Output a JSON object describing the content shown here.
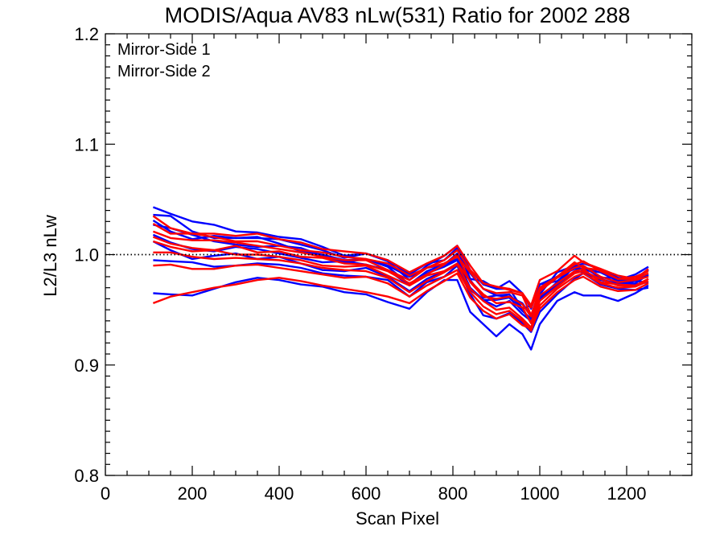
{
  "chart_data": {
    "type": "line",
    "title": "MODIS/Aqua AV83 nLw(531) Ratio for 2002 288",
    "xlabel": "Scan Pixel",
    "ylabel": "L2/L3 nLw",
    "xlim": [
      0,
      1350
    ],
    "ylim": [
      0.8,
      1.2
    ],
    "x_ticks": [
      0,
      200,
      400,
      600,
      800,
      1000,
      1200
    ],
    "y_ticks": [
      0.8,
      0.9,
      1.0,
      1.1,
      1.2
    ],
    "x_tick_labels": [
      "0",
      "200",
      "400",
      "600",
      "800",
      "1000",
      "1200"
    ],
    "y_tick_labels": [
      "0.8",
      "0.9",
      "1.0",
      "1.1",
      "1.2"
    ],
    "reference_line": {
      "y": 1.0,
      "style": "dotted"
    },
    "legend_position": "top-left",
    "legend": [
      {
        "label": "Mirror-Side 1",
        "color": "#0000ff"
      },
      {
        "label": "Mirror-Side 2",
        "color": "#ff0000"
      }
    ],
    "x": [
      110,
      150,
      200,
      250,
      300,
      350,
      400,
      450,
      500,
      550,
      600,
      650,
      700,
      740,
      780,
      810,
      840,
      870,
      900,
      930,
      960,
      980,
      1000,
      1040,
      1080,
      1100,
      1140,
      1180,
      1220,
      1250
    ],
    "series": [
      {
        "group": "Mirror-Side 1",
        "color": "#0000ff",
        "values": [
          1.043,
          1.037,
          1.03,
          1.027,
          1.021,
          1.02,
          1.016,
          1.014,
          1.007,
          0.999,
          1.001,
          0.995,
          0.982,
          0.992,
          0.995,
          1.006,
          0.978,
          0.976,
          0.969,
          0.976,
          0.965,
          0.951,
          0.973,
          0.976,
          0.989,
          0.992,
          0.987,
          0.979,
          0.978,
          0.986
        ]
      },
      {
        "group": "Mirror-Side 1",
        "color": "#0000ff",
        "values": [
          1.036,
          1.035,
          1.021,
          1.015,
          1.015,
          1.015,
          1.014,
          1.009,
          1.004,
          0.997,
          1.001,
          0.994,
          0.977,
          0.99,
          0.999,
          1.008,
          0.986,
          0.973,
          0.969,
          0.969,
          0.951,
          0.954,
          0.973,
          0.98,
          0.987,
          0.987,
          0.986,
          0.977,
          0.982,
          0.989
        ]
      },
      {
        "group": "Mirror-Side 1",
        "color": "#0000ff",
        "values": [
          1.031,
          1.021,
          1.014,
          1.017,
          1.015,
          1.016,
          1.01,
          1.003,
          1.0,
          0.995,
          0.996,
          0.99,
          0.98,
          0.988,
          0.991,
          1.001,
          0.983,
          0.969,
          0.963,
          0.962,
          0.956,
          0.944,
          0.964,
          0.984,
          0.99,
          0.986,
          0.984,
          0.976,
          0.977,
          0.981
        ]
      },
      {
        "group": "Mirror-Side 1",
        "color": "#0000ff",
        "values": [
          1.027,
          1.024,
          1.018,
          1.012,
          1.009,
          1.007,
          1.008,
          1.006,
          0.999,
          0.993,
          0.996,
          0.989,
          0.973,
          0.985,
          0.991,
          0.996,
          0.977,
          0.961,
          0.963,
          0.964,
          0.951,
          0.938,
          0.961,
          0.975,
          0.991,
          0.985,
          0.978,
          0.973,
          0.974,
          0.982
        ]
      },
      {
        "group": "Mirror-Side 1",
        "color": "#0000ff",
        "values": [
          1.018,
          1.011,
          1.005,
          1.003,
          1.007,
          1.005,
          1.001,
          0.997,
          0.993,
          0.994,
          0.991,
          0.986,
          0.972,
          0.983,
          0.989,
          0.995,
          0.97,
          0.959,
          0.959,
          0.961,
          0.949,
          0.942,
          0.963,
          0.972,
          0.99,
          0.989,
          0.979,
          0.979,
          0.973,
          0.975
        ]
      },
      {
        "group": "Mirror-Side 1",
        "color": "#0000ff",
        "values": [
          1.012,
          1.004,
          0.996,
          0.999,
          1.001,
          0.996,
          0.998,
          0.992,
          0.986,
          0.985,
          0.988,
          0.98,
          0.967,
          0.978,
          0.985,
          0.992,
          0.968,
          0.959,
          0.953,
          0.958,
          0.946,
          0.94,
          0.96,
          0.972,
          0.985,
          0.984,
          0.977,
          0.974,
          0.976,
          0.975
        ]
      },
      {
        "group": "Mirror-Side 1",
        "color": "#0000ff",
        "values": [
          0.995,
          0.994,
          0.993,
          0.989,
          0.99,
          0.992,
          0.991,
          0.988,
          0.983,
          0.981,
          0.98,
          0.977,
          0.962,
          0.975,
          0.98,
          0.99,
          0.964,
          0.945,
          0.942,
          0.947,
          0.938,
          0.93,
          0.948,
          0.964,
          0.978,
          0.983,
          0.973,
          0.969,
          0.968,
          0.97
        ]
      },
      {
        "group": "Mirror-Side 1",
        "color": "#0000ff",
        "values": [
          0.965,
          0.964,
          0.963,
          0.969,
          0.975,
          0.979,
          0.977,
          0.973,
          0.971,
          0.966,
          0.964,
          0.957,
          0.951,
          0.966,
          0.977,
          0.977,
          0.948,
          0.937,
          0.926,
          0.937,
          0.928,
          0.914,
          0.937,
          0.958,
          0.966,
          0.963,
          0.963,
          0.958,
          0.965,
          0.972
        ]
      },
      {
        "group": "Mirror-Side 2",
        "color": "#ff0000",
        "values": [
          1.035,
          1.024,
          1.019,
          1.019,
          1.017,
          1.019,
          1.014,
          1.011,
          1.005,
          1.003,
          1.001,
          0.995,
          0.984,
          0.992,
          0.999,
          1.008,
          0.99,
          0.974,
          0.971,
          0.969,
          0.965,
          0.954,
          0.977,
          0.985,
          0.999,
          0.993,
          0.987,
          0.981,
          0.978,
          0.987
        ]
      },
      {
        "group": "Mirror-Side 2",
        "color": "#ff0000",
        "values": [
          1.028,
          1.019,
          1.019,
          1.016,
          1.012,
          1.012,
          1.008,
          1.004,
          1.002,
          0.998,
          0.996,
          0.992,
          0.981,
          0.988,
          0.995,
          1.004,
          0.986,
          0.974,
          0.971,
          0.968,
          0.965,
          0.952,
          0.97,
          0.98,
          0.991,
          0.994,
          0.985,
          0.978,
          0.98,
          0.985
        ]
      },
      {
        "group": "Mirror-Side 2",
        "color": "#ff0000",
        "values": [
          1.021,
          1.015,
          1.013,
          1.013,
          1.011,
          1.008,
          1.005,
          1.002,
          0.998,
          0.995,
          0.995,
          0.986,
          0.977,
          0.988,
          0.992,
          0.998,
          0.984,
          0.969,
          0.965,
          0.966,
          0.963,
          0.945,
          0.968,
          0.98,
          0.993,
          0.988,
          0.986,
          0.978,
          0.978,
          0.983
        ]
      },
      {
        "group": "Mirror-Side 2",
        "color": "#ff0000",
        "values": [
          1.016,
          1.01,
          1.006,
          1.004,
          1.008,
          1.002,
          1.003,
          0.998,
          0.997,
          0.992,
          0.991,
          0.985,
          0.974,
          0.982,
          0.991,
          1.0,
          0.975,
          0.962,
          0.96,
          0.962,
          0.955,
          0.944,
          0.967,
          0.979,
          0.988,
          0.99,
          0.98,
          0.975,
          0.977,
          0.98
        ]
      },
      {
        "group": "Mirror-Side 2",
        "color": "#ff0000",
        "values": [
          1.012,
          1.007,
          1.003,
          1.004,
          1.0,
          1.0,
          0.998,
          0.995,
          0.99,
          0.989,
          0.99,
          0.981,
          0.972,
          0.981,
          0.985,
          0.992,
          0.976,
          0.964,
          0.956,
          0.957,
          0.952,
          0.938,
          0.963,
          0.974,
          0.985,
          0.987,
          0.975,
          0.973,
          0.972,
          0.978
        ]
      },
      {
        "group": "Mirror-Side 2",
        "color": "#ff0000",
        "values": [
          1.002,
          1.002,
          0.998,
          0.996,
          0.997,
          0.996,
          0.995,
          0.992,
          0.988,
          0.986,
          0.985,
          0.979,
          0.966,
          0.976,
          0.984,
          0.991,
          0.969,
          0.958,
          0.95,
          0.952,
          0.942,
          0.934,
          0.958,
          0.971,
          0.983,
          0.985,
          0.978,
          0.972,
          0.972,
          0.978
        ]
      },
      {
        "group": "Mirror-Side 2",
        "color": "#ff0000",
        "values": [
          0.99,
          0.991,
          0.987,
          0.987,
          0.99,
          0.991,
          0.988,
          0.985,
          0.982,
          0.979,
          0.98,
          0.974,
          0.962,
          0.972,
          0.98,
          0.986,
          0.966,
          0.953,
          0.946,
          0.949,
          0.94,
          0.931,
          0.954,
          0.969,
          0.98,
          0.983,
          0.974,
          0.97,
          0.971,
          0.976
        ]
      },
      {
        "group": "Mirror-Side 2",
        "color": "#ff0000",
        "values": [
          0.956,
          0.962,
          0.966,
          0.97,
          0.973,
          0.977,
          0.979,
          0.976,
          0.972,
          0.969,
          0.966,
          0.962,
          0.956,
          0.967,
          0.976,
          0.983,
          0.961,
          0.949,
          0.942,
          0.946,
          0.936,
          0.933,
          0.951,
          0.966,
          0.977,
          0.98,
          0.971,
          0.967,
          0.968,
          0.974
        ]
      }
    ]
  }
}
